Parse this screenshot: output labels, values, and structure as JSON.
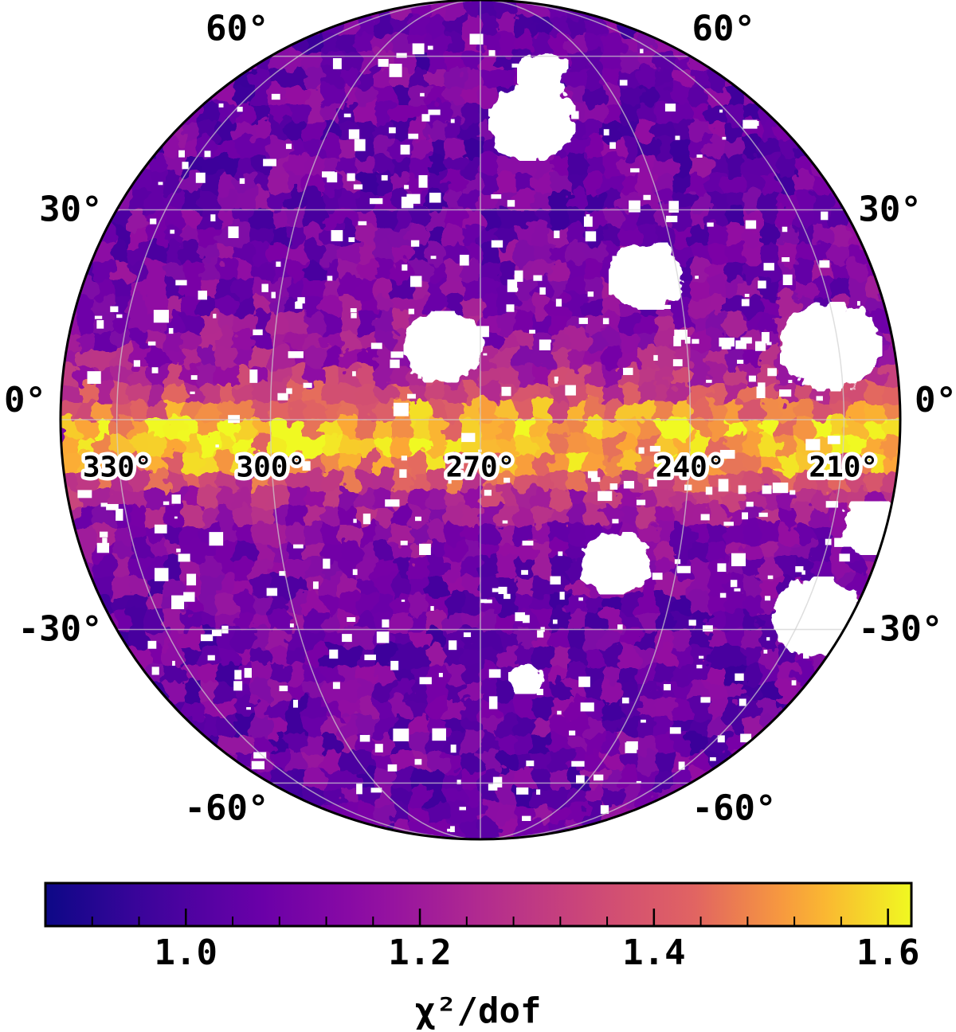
{
  "chart_data": {
    "type": "heatmap",
    "projection": "orthographic",
    "title": "",
    "map": {
      "central_longitude_deg": 270,
      "latitude_labels": [
        {
          "text": "60°",
          "lat": 60,
          "side": "left"
        },
        {
          "text": "60°",
          "lat": 60,
          "side": "right"
        },
        {
          "text": "30°",
          "lat": 30,
          "side": "left"
        },
        {
          "text": "30°",
          "lat": 30,
          "side": "right"
        },
        {
          "text": "0°",
          "lat": 0,
          "side": "left"
        },
        {
          "text": "0°",
          "lat": 0,
          "side": "right"
        },
        {
          "text": "-30°",
          "lat": -30,
          "side": "left"
        },
        {
          "text": "-30°",
          "lat": -30,
          "side": "right"
        },
        {
          "text": "-60°",
          "lat": -60,
          "side": "left"
        },
        {
          "text": "-60°",
          "lat": -60,
          "side": "right"
        }
      ],
      "longitude_labels": [
        {
          "text": "330°",
          "lon": 330
        },
        {
          "text": "300°",
          "lon": 300
        },
        {
          "text": "270°",
          "lon": 270
        },
        {
          "text": "240°",
          "lon": 240
        },
        {
          "text": "210°",
          "lon": 210
        }
      ],
      "graticule_lats": [
        -60,
        -30,
        0,
        30,
        60
      ],
      "graticule_lons": [
        210,
        240,
        270,
        300,
        330
      ],
      "masked_value_color": "#ffffff"
    },
    "colorbar": {
      "label": "χ²/dof",
      "colormap": "plasma",
      "range": [
        0.88,
        1.62
      ],
      "major_ticks": [
        {
          "value": 1.0,
          "label": "1.0"
        },
        {
          "value": 1.2,
          "label": "1.2"
        },
        {
          "value": 1.4,
          "label": "1.4"
        },
        {
          "value": 1.6,
          "label": "1.6"
        }
      ],
      "minor_tick_step": 0.04
    },
    "colors": {
      "low": "#0d0887",
      "mid_low": "#6a00a8",
      "mid": "#b12a90",
      "mid_high": "#e16462",
      "high_mid": "#fca636",
      "high": "#f0f921"
    }
  }
}
